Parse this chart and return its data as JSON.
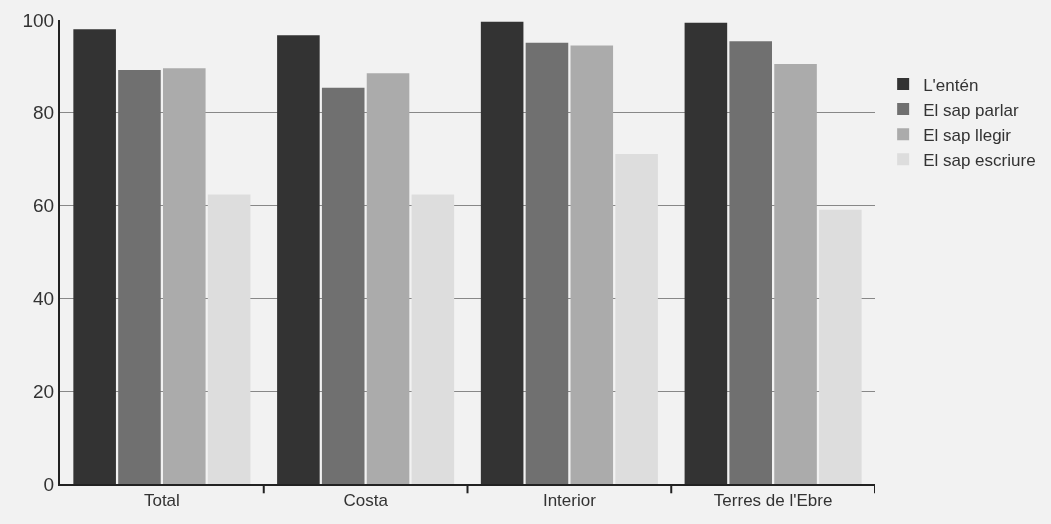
{
  "chart_data": {
    "type": "bar",
    "categories": [
      "Total",
      "Costa",
      "Interior",
      "Terres de l'Ebre"
    ],
    "series": [
      {
        "name": "L'entén",
        "color": "#333333",
        "values": [
          98.0,
          96.7,
          99.6,
          99.4
        ]
      },
      {
        "name": "El sap parlar",
        "color": "#707070",
        "values": [
          89.2,
          85.4,
          95.1,
          95.4
        ]
      },
      {
        "name": "El sap llegir",
        "color": "#ababab",
        "values": [
          89.6,
          88.5,
          94.5,
          90.5
        ]
      },
      {
        "name": "El sap escriure",
        "color": "#dddddd",
        "values": [
          62.4,
          62.4,
          71.1,
          59.1
        ]
      }
    ],
    "ylim": [
      0,
      100
    ],
    "yticks": [
      0,
      20,
      40,
      60,
      80,
      100
    ],
    "grid": "y",
    "legend": "right"
  }
}
